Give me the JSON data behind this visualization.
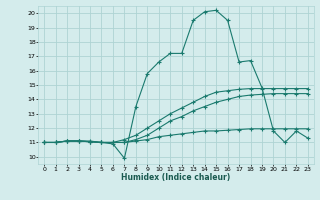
{
  "xlabel": "Humidex (Indice chaleur)",
  "bg_color": "#d4ecec",
  "grid_color": "#aed4d4",
  "line_color": "#1a7a6e",
  "xlim": [
    -0.5,
    23.5
  ],
  "ylim": [
    9.5,
    20.5
  ],
  "yticks": [
    10,
    11,
    12,
    13,
    14,
    15,
    16,
    17,
    18,
    19,
    20
  ],
  "xticks": [
    0,
    1,
    2,
    3,
    4,
    5,
    6,
    7,
    8,
    9,
    10,
    11,
    12,
    13,
    14,
    15,
    16,
    17,
    18,
    19,
    20,
    21,
    22,
    23
  ],
  "line1_x": [
    0,
    1,
    2,
    3,
    4,
    5,
    6,
    7,
    8,
    9,
    10,
    11,
    12,
    13,
    14,
    15,
    16,
    17,
    18,
    19,
    20,
    21,
    22,
    23
  ],
  "line1_y": [
    11,
    11,
    11.1,
    11.1,
    11.1,
    11,
    11,
    11,
    11.1,
    11.2,
    11.4,
    11.5,
    11.6,
    11.7,
    11.8,
    11.8,
    11.85,
    11.9,
    11.95,
    11.95,
    11.95,
    11.95,
    11.95,
    11.95
  ],
  "line2_x": [
    0,
    1,
    2,
    3,
    4,
    5,
    6,
    7,
    8,
    9,
    10,
    11,
    12,
    13,
    14,
    15,
    16,
    17,
    18,
    19,
    20,
    21,
    22,
    23
  ],
  "line2_y": [
    11,
    11,
    11.1,
    11.1,
    11.05,
    11,
    11,
    11.2,
    11.5,
    12.0,
    12.5,
    13.0,
    13.4,
    13.8,
    14.2,
    14.5,
    14.6,
    14.7,
    14.75,
    14.75,
    14.75,
    14.75,
    14.75,
    14.75
  ],
  "line3_x": [
    0,
    1,
    2,
    3,
    4,
    5,
    6,
    7,
    8,
    9,
    10,
    11,
    12,
    13,
    14,
    15,
    16,
    17,
    18,
    19,
    20,
    21,
    22,
    23
  ],
  "line3_y": [
    11,
    11,
    11.1,
    11.1,
    11.05,
    11,
    10.9,
    9.9,
    13.5,
    15.8,
    16.6,
    17.2,
    17.2,
    19.5,
    20.1,
    20.2,
    19.5,
    16.6,
    16.7,
    14.8,
    11.8,
    11.0,
    11.8,
    11.3
  ],
  "line4_x": [
    0,
    1,
    2,
    3,
    4,
    5,
    6,
    7,
    8,
    9,
    10,
    11,
    12,
    13,
    14,
    15,
    16,
    17,
    18,
    19,
    20,
    21,
    22,
    23
  ],
  "line4_y": [
    11,
    11,
    11.1,
    11.1,
    11.05,
    11,
    11,
    11.0,
    11.2,
    11.5,
    12.0,
    12.5,
    12.8,
    13.2,
    13.5,
    13.8,
    14.0,
    14.2,
    14.3,
    14.35,
    14.4,
    14.4,
    14.4,
    14.4
  ]
}
